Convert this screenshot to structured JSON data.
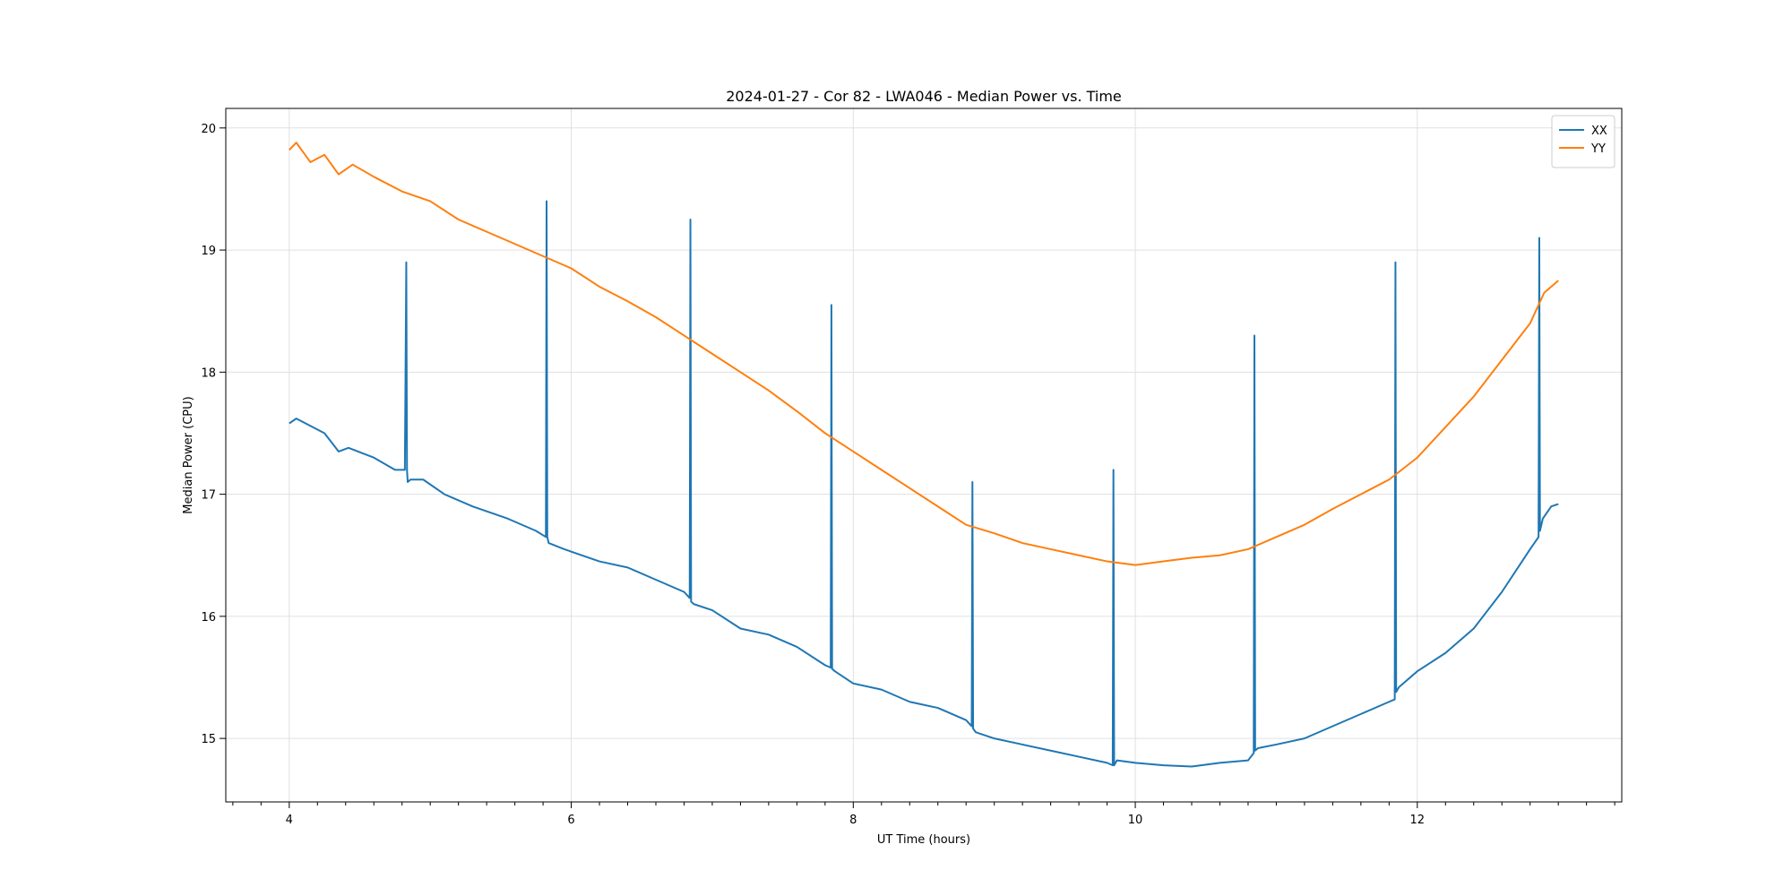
{
  "chart_data": {
    "type": "line",
    "title": "2024-01-27 - Cor 82 - LWA046 - Median Power vs. Time",
    "xlabel": "UT Time (hours)",
    "ylabel": "Median Power (CPU)",
    "xlim": [
      3.55,
      13.45
    ],
    "ylim": [
      14.48,
      20.16
    ],
    "x_ticks": [
      4,
      6,
      8,
      10,
      12
    ],
    "x_tick_labels": [
      "4",
      "6",
      "8",
      "10",
      "12"
    ],
    "x_minor_step": 0.2,
    "y_ticks": [
      15,
      16,
      17,
      18,
      19,
      20
    ],
    "y_tick_labels": [
      "15",
      "16",
      "17",
      "18",
      "19",
      "20"
    ],
    "grid": true,
    "legend_position": "top-right",
    "series": [
      {
        "name": "XX",
        "color": "#1f77b4",
        "x": [
          4.0,
          4.05,
          4.25,
          4.35,
          4.42,
          4.6,
          4.75,
          4.82,
          4.83,
          4.835,
          4.84,
          4.86,
          4.95,
          5.1,
          5.3,
          5.55,
          5.75,
          5.82,
          5.825,
          5.83,
          5.84,
          5.95,
          6.2,
          6.4,
          6.6,
          6.8,
          6.84,
          6.845,
          6.85,
          6.87,
          7.0,
          7.2,
          7.4,
          7.6,
          7.8,
          7.84,
          7.845,
          7.85,
          7.87,
          8.0,
          8.2,
          8.4,
          8.6,
          8.8,
          8.84,
          8.845,
          8.85,
          8.87,
          9.0,
          9.2,
          9.4,
          9.6,
          9.8,
          9.84,
          9.845,
          9.85,
          9.87,
          10.0,
          10.2,
          10.4,
          10.6,
          10.8,
          10.84,
          10.845,
          10.85,
          10.87,
          11.0,
          11.2,
          11.4,
          11.6,
          11.8,
          11.84,
          11.845,
          11.85,
          11.87,
          12.0,
          12.2,
          12.4,
          12.6,
          12.8,
          12.86,
          12.865,
          12.87,
          12.89,
          12.95,
          13.0
        ],
        "y": [
          17.58,
          17.62,
          17.5,
          17.35,
          17.38,
          17.3,
          17.2,
          17.2,
          18.9,
          17.2,
          17.1,
          17.12,
          17.12,
          17.0,
          16.9,
          16.8,
          16.7,
          16.65,
          19.4,
          16.65,
          16.6,
          16.55,
          16.45,
          16.4,
          16.3,
          16.2,
          16.15,
          19.25,
          16.12,
          16.1,
          16.05,
          15.9,
          15.85,
          15.75,
          15.6,
          15.58,
          18.55,
          15.57,
          15.55,
          15.45,
          15.4,
          15.3,
          15.25,
          15.15,
          15.1,
          17.1,
          15.08,
          15.05,
          15.0,
          14.95,
          14.9,
          14.85,
          14.8,
          14.78,
          17.2,
          14.78,
          14.82,
          14.8,
          14.78,
          14.77,
          14.8,
          14.82,
          14.88,
          18.3,
          14.9,
          14.92,
          14.95,
          15.0,
          15.1,
          15.2,
          15.3,
          15.32,
          18.9,
          15.38,
          15.42,
          15.55,
          15.7,
          15.9,
          16.2,
          16.55,
          16.65,
          19.1,
          16.7,
          16.8,
          16.9,
          16.92
        ]
      },
      {
        "name": "YY",
        "color": "#ff7f0e",
        "x": [
          4.0,
          4.05,
          4.15,
          4.25,
          4.35,
          4.45,
          4.6,
          4.8,
          5.0,
          5.2,
          5.4,
          5.6,
          5.8,
          6.0,
          6.2,
          6.4,
          6.6,
          6.8,
          7.0,
          7.2,
          7.4,
          7.6,
          7.8,
          8.0,
          8.2,
          8.4,
          8.6,
          8.8,
          9.0,
          9.2,
          9.4,
          9.6,
          9.8,
          10.0,
          10.2,
          10.4,
          10.6,
          10.8,
          11.0,
          11.2,
          11.4,
          11.6,
          11.8,
          12.0,
          12.2,
          12.4,
          12.6,
          12.8,
          12.9,
          13.0
        ],
        "y": [
          19.82,
          19.88,
          19.72,
          19.78,
          19.62,
          19.7,
          19.6,
          19.48,
          19.4,
          19.25,
          19.15,
          19.05,
          18.95,
          18.85,
          18.7,
          18.58,
          18.45,
          18.3,
          18.15,
          18.0,
          17.85,
          17.68,
          17.5,
          17.35,
          17.2,
          17.05,
          16.9,
          16.75,
          16.68,
          16.6,
          16.55,
          16.5,
          16.45,
          16.42,
          16.45,
          16.48,
          16.5,
          16.55,
          16.65,
          16.75,
          16.88,
          17.0,
          17.12,
          17.3,
          17.55,
          17.8,
          18.1,
          18.4,
          18.65,
          18.75
        ]
      }
    ]
  }
}
